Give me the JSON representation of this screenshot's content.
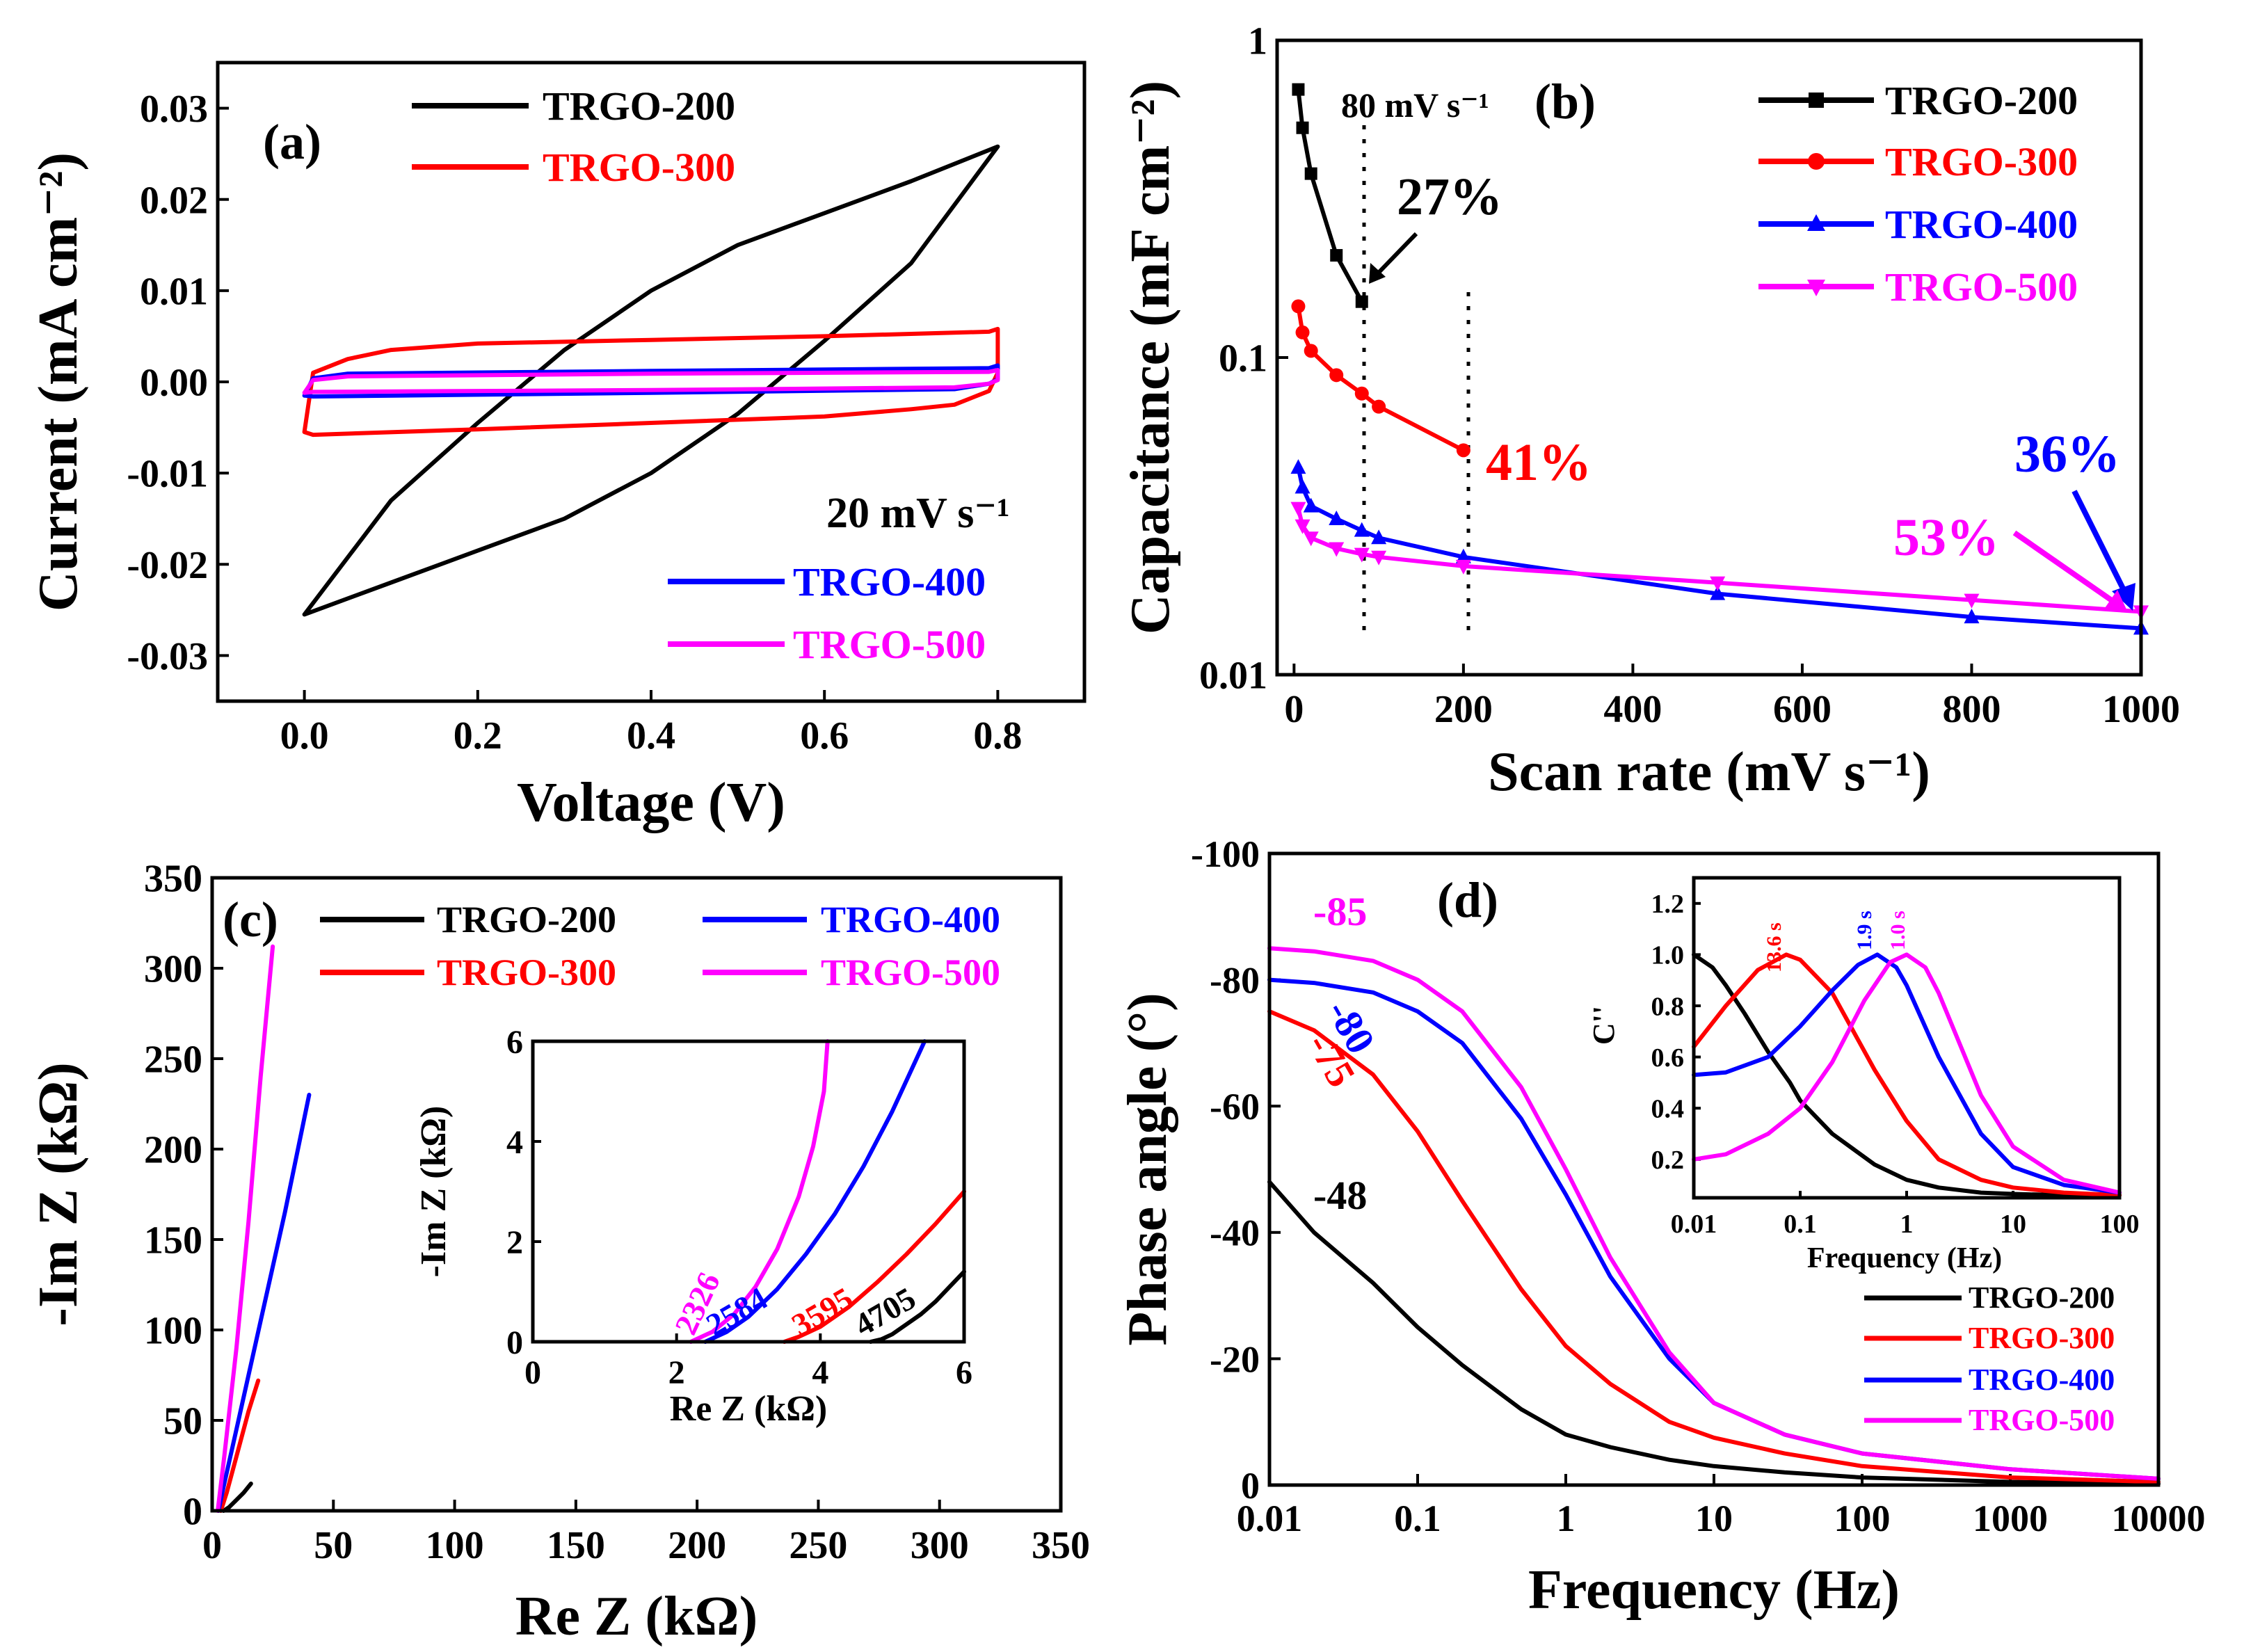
{
  "colors": {
    "black": "#000000",
    "red": "#ff0000",
    "blue": "#0000ff",
    "magenta": "#ff00ff"
  },
  "chart_data": [
    {
      "id": "a",
      "type": "line",
      "panel_label": "(a)",
      "xlabel": "Voltage (V)",
      "ylabel": "Current (mA cm⁻²)",
      "xlim": [
        -0.1,
        0.9
      ],
      "ylim": [
        -0.035,
        0.035
      ],
      "xticks": [
        "0.0",
        "0.2",
        "0.4",
        "0.6",
        "0.8"
      ],
      "yticks": [
        "-0.03",
        "-0.02",
        "-0.01",
        "0.00",
        "0.01",
        "0.02",
        "0.03"
      ],
      "annotation": "20 mV s⁻¹",
      "series": [
        {
          "name": "TRGO-200",
          "color": "black",
          "x": [
            0,
            0.1,
            0.2,
            0.3,
            0.4,
            0.5,
            0.6,
            0.7,
            0.8,
            0.7,
            0.6,
            0.5,
            0.4,
            0.3,
            0.2,
            0.1,
            0
          ],
          "y": [
            -0.0255,
            -0.013,
            -0.0045,
            0.0035,
            0.01,
            0.015,
            0.0185,
            0.022,
            0.0258,
            0.013,
            0.0045,
            -0.0035,
            -0.01,
            -0.015,
            -0.0185,
            -0.022,
            -0.0255
          ]
        },
        {
          "name": "TRGO-300",
          "color": "red",
          "x": [
            0,
            0.01,
            0.05,
            0.1,
            0.2,
            0.4,
            0.6,
            0.79,
            0.8,
            0.8,
            0.79,
            0.75,
            0.7,
            0.6,
            0.4,
            0.2,
            0.01,
            0
          ],
          "y": [
            -0.0055,
            0.001,
            0.0025,
            0.0035,
            0.0042,
            0.0046,
            0.005,
            0.0055,
            0.0058,
            0.001,
            -0.001,
            -0.0025,
            -0.003,
            -0.0038,
            -0.0045,
            -0.0052,
            -0.0058,
            -0.0055
          ]
        },
        {
          "name": "TRGO-400",
          "color": "blue",
          "x": [
            0,
            0.01,
            0.05,
            0.4,
            0.79,
            0.8,
            0.8,
            0.79,
            0.75,
            0.4,
            0.01,
            0
          ],
          "y": [
            -0.0015,
            0.0004,
            0.0009,
            0.0012,
            0.0015,
            0.0018,
            0.0003,
            -0.0002,
            -0.0008,
            -0.0012,
            -0.0016,
            -0.0015
          ]
        },
        {
          "name": "TRGO-500",
          "color": "magenta",
          "x": [
            0,
            0.01,
            0.05,
            0.4,
            0.79,
            0.8,
            0.8,
            0.79,
            0.75,
            0.4,
            0.01,
            0
          ],
          "y": [
            -0.0012,
            0.0002,
            0.0006,
            0.0009,
            0.0011,
            0.0013,
            0.0002,
            -0.0002,
            -0.0006,
            -0.0009,
            -0.0011,
            -0.0012
          ]
        }
      ]
    },
    {
      "id": "b",
      "type": "line",
      "panel_label": "(b)",
      "xlabel": "Scan rate (mV s⁻¹)",
      "ylabel": "Capacitance (mF cm⁻²)",
      "xlim": [
        -20,
        1000
      ],
      "ylim": [
        0.01,
        1
      ],
      "yscale": "log",
      "xticks": [
        "0",
        "200",
        "400",
        "600",
        "800",
        "1000"
      ],
      "yticks": [
        "0.01",
        "0.1",
        "1"
      ],
      "guide_x": [
        80,
        200
      ],
      "annotations": [
        {
          "text": "80 mV s⁻¹",
          "color": "black"
        },
        {
          "text": "27%",
          "color": "black"
        },
        {
          "text": "41%",
          "color": "red"
        },
        {
          "text": "36%",
          "color": "blue"
        },
        {
          "text": "53%",
          "color": "magenta"
        }
      ],
      "series": [
        {
          "name": "TRGO-200",
          "color": "black",
          "marker": "square",
          "x": [
            5,
            10,
            20,
            50,
            80
          ],
          "y": [
            0.7,
            0.53,
            0.38,
            0.21,
            0.15
          ]
        },
        {
          "name": "TRGO-300",
          "color": "red",
          "marker": "circle",
          "x": [
            5,
            10,
            20,
            50,
            80,
            100,
            200
          ],
          "y": [
            0.145,
            0.12,
            0.105,
            0.088,
            0.077,
            0.07,
            0.051
          ]
        },
        {
          "name": "TRGO-400",
          "color": "blue",
          "marker": "triangle-up",
          "x": [
            5,
            10,
            20,
            50,
            80,
            100,
            200,
            500,
            800,
            1000
          ],
          "y": [
            0.045,
            0.039,
            0.034,
            0.031,
            0.0285,
            0.027,
            0.0235,
            0.018,
            0.0152,
            0.014
          ]
        },
        {
          "name": "TRGO-500",
          "color": "magenta",
          "marker": "triangle-down",
          "x": [
            5,
            10,
            20,
            50,
            80,
            100,
            200,
            500,
            800,
            1000
          ],
          "y": [
            0.0335,
            0.0295,
            0.027,
            0.025,
            0.024,
            0.0235,
            0.022,
            0.0195,
            0.0172,
            0.0158
          ]
        }
      ]
    },
    {
      "id": "c",
      "type": "line",
      "panel_label": "(c)",
      "xlabel": "Re Z (kΩ)",
      "ylabel": "-Im Z (kΩ)",
      "xlim": [
        0,
        350
      ],
      "ylim": [
        0,
        350
      ],
      "xticks": [
        "0",
        "50",
        "100",
        "150",
        "200",
        "250",
        "300",
        "350"
      ],
      "yticks": [
        "0",
        "50",
        "100",
        "150",
        "200",
        "250",
        "300",
        "350"
      ],
      "series": [
        {
          "name": "TRGO-200",
          "color": "black",
          "x": [
            4.7,
            7,
            10,
            13,
            16
          ],
          "y": [
            0,
            2,
            6,
            10,
            15
          ]
        },
        {
          "name": "TRGO-300",
          "color": "red",
          "x": [
            3.6,
            6,
            10,
            15,
            19
          ],
          "y": [
            0,
            10,
            30,
            55,
            72
          ]
        },
        {
          "name": "TRGO-400",
          "color": "blue",
          "x": [
            2.6,
            5,
            10,
            20,
            30,
            40
          ],
          "y": [
            0,
            15,
            45,
            105,
            165,
            230
          ]
        },
        {
          "name": "TRGO-500",
          "color": "magenta",
          "x": [
            2.3,
            5,
            10,
            15,
            20,
            25
          ],
          "y": [
            0,
            30,
            90,
            160,
            240,
            312
          ]
        }
      ],
      "inset": {
        "xlabel": "Re Z (kΩ)",
        "ylabel": "-Im Z (kΩ)",
        "xlim": [
          0,
          6
        ],
        "ylim": [
          0,
          6
        ],
        "xticks": [
          "0",
          "2",
          "4",
          "6"
        ],
        "yticks": [
          "0",
          "2",
          "4",
          "6"
        ],
        "labels": [
          {
            "text": "2326",
            "color": "magenta"
          },
          {
            "text": "2584",
            "color": "blue"
          },
          {
            "text": "3595",
            "color": "red"
          },
          {
            "text": "4705",
            "color": "black"
          }
        ],
        "series": [
          {
            "name": "TRGO-200",
            "color": "black",
            "x": [
              4.7,
              4.85,
              5.0,
              5.2,
              5.4,
              5.6,
              5.8,
              6.0
            ],
            "y": [
              0,
              0.05,
              0.15,
              0.35,
              0.55,
              0.8,
              1.1,
              1.4
            ]
          },
          {
            "name": "TRGO-300",
            "color": "red",
            "x": [
              3.5,
              3.7,
              4.0,
              4.4,
              4.8,
              5.2,
              5.6,
              6.0
            ],
            "y": [
              0,
              0.1,
              0.3,
              0.7,
              1.2,
              1.75,
              2.35,
              3.0
            ]
          },
          {
            "name": "TRGO-400",
            "color": "blue",
            "x": [
              2.4,
              2.7,
              3.0,
              3.4,
              3.8,
              4.2,
              4.6,
              5.0,
              5.45
            ],
            "y": [
              0,
              0.2,
              0.5,
              1.05,
              1.75,
              2.55,
              3.5,
              4.6,
              6.0
            ]
          },
          {
            "name": "TRGO-500",
            "color": "magenta",
            "x": [
              2.2,
              2.5,
              2.8,
              3.1,
              3.4,
              3.7,
              3.9,
              4.05,
              4.1
            ],
            "y": [
              0,
              0.2,
              0.55,
              1.1,
              1.85,
              2.9,
              3.9,
              5.0,
              6.0
            ]
          }
        ]
      }
    },
    {
      "id": "d",
      "type": "line",
      "panel_label": "(d)",
      "xlabel": "Frequency (Hz)",
      "ylabel": "Phase angle (°)",
      "xscale": "log",
      "xlim": [
        0.01,
        10000
      ],
      "ylim": [
        0,
        -100
      ],
      "xticks": [
        "0.01",
        "0.1",
        "1",
        "10",
        "100",
        "1000",
        "10000"
      ],
      "yticks": [
        "0",
        "-20",
        "-40",
        "-60",
        "-80",
        "-100"
      ],
      "annotations": [
        {
          "text": "-85",
          "color": "magenta"
        },
        {
          "text": "-80",
          "color": "blue"
        },
        {
          "text": "-75",
          "color": "red"
        },
        {
          "text": "-48",
          "color": "black"
        }
      ],
      "series": [
        {
          "name": "TRGO-200",
          "color": "black",
          "x": [
            0.01,
            0.02,
            0.05,
            0.1,
            0.2,
            0.5,
            1,
            2,
            5,
            10,
            30,
            100,
            1000,
            10000
          ],
          "y": [
            -48,
            -40,
            -32,
            -25,
            -19,
            -12,
            -8,
            -6,
            -4,
            -3,
            -2,
            -1.2,
            -0.5,
            -0.2
          ]
        },
        {
          "name": "TRGO-300",
          "color": "red",
          "x": [
            0.01,
            0.02,
            0.05,
            0.1,
            0.2,
            0.5,
            1,
            2,
            5,
            10,
            30,
            100,
            1000,
            10000
          ],
          "y": [
            -75,
            -72,
            -65,
            -56,
            -45,
            -31,
            -22,
            -16,
            -10,
            -7.5,
            -5,
            -3,
            -1.2,
            -0.5
          ]
        },
        {
          "name": "TRGO-400",
          "color": "blue",
          "x": [
            0.01,
            0.02,
            0.05,
            0.1,
            0.2,
            0.5,
            1,
            2,
            5,
            10,
            30,
            100,
            1000,
            10000
          ],
          "y": [
            -80,
            -79.5,
            -78,
            -75,
            -70,
            -58,
            -46,
            -33,
            -20,
            -13,
            -8,
            -5,
            -2.5,
            -1
          ]
        },
        {
          "name": "TRGO-500",
          "color": "magenta",
          "x": [
            0.01,
            0.02,
            0.05,
            0.1,
            0.2,
            0.5,
            1,
            2,
            5,
            10,
            30,
            100,
            1000,
            10000
          ],
          "y": [
            -85,
            -84.5,
            -83,
            -80,
            -75,
            -63,
            -50,
            -36,
            -21,
            -13,
            -8,
            -5,
            -2.5,
            -1
          ]
        }
      ],
      "inset": {
        "xlabel": "Frequency (Hz)",
        "ylabel": "C''",
        "xscale": "log",
        "xlim": [
          0.01,
          100
        ],
        "ylim": [
          0.05,
          1.3
        ],
        "xticks": [
          "0.01",
          "0.1",
          "1",
          "10",
          "100"
        ],
        "yticks": [
          "0.2",
          "0.4",
          "0.6",
          "0.8",
          "1.0",
          "1.2"
        ],
        "labels": [
          {
            "text": "13.6 s",
            "color": "red"
          },
          {
            "text": "1.9 s",
            "color": "blue"
          },
          {
            "text": "1.0 s",
            "color": "magenta"
          }
        ],
        "series": [
          {
            "name": "TRGO-200",
            "color": "black",
            "x": [
              0.01,
              0.015,
              0.02,
              0.03,
              0.05,
              0.08,
              0.1,
              0.2,
              0.5,
              1,
              2,
              5,
              10,
              30,
              100
            ],
            "y": [
              1.0,
              0.95,
              0.88,
              0.77,
              0.62,
              0.5,
              0.43,
              0.3,
              0.18,
              0.12,
              0.09,
              0.07,
              0.065,
              0.06,
              0.06
            ]
          },
          {
            "name": "TRGO-300",
            "color": "red",
            "x": [
              0.01,
              0.02,
              0.04,
              0.074,
              0.1,
              0.2,
              0.5,
              1,
              2,
              5,
              10,
              30,
              100
            ],
            "y": [
              0.64,
              0.8,
              0.94,
              1.0,
              0.98,
              0.85,
              0.55,
              0.35,
              0.2,
              0.12,
              0.09,
              0.07,
              0.06
            ]
          },
          {
            "name": "TRGO-400",
            "color": "blue",
            "x": [
              0.01,
              0.02,
              0.05,
              0.1,
              0.2,
              0.35,
              0.53,
              0.8,
              1,
              2,
              5,
              10,
              30,
              100
            ],
            "y": [
              0.53,
              0.54,
              0.6,
              0.72,
              0.86,
              0.96,
              1.0,
              0.95,
              0.88,
              0.6,
              0.3,
              0.17,
              0.1,
              0.07
            ]
          },
          {
            "name": "TRGO-500",
            "color": "magenta",
            "x": [
              0.01,
              0.02,
              0.05,
              0.1,
              0.2,
              0.4,
              0.7,
              1,
              1.5,
              2,
              5,
              10,
              30,
              100
            ],
            "y": [
              0.2,
              0.22,
              0.3,
              0.4,
              0.58,
              0.82,
              0.97,
              1.0,
              0.95,
              0.85,
              0.45,
              0.25,
              0.12,
              0.07
            ]
          }
        ]
      }
    }
  ]
}
